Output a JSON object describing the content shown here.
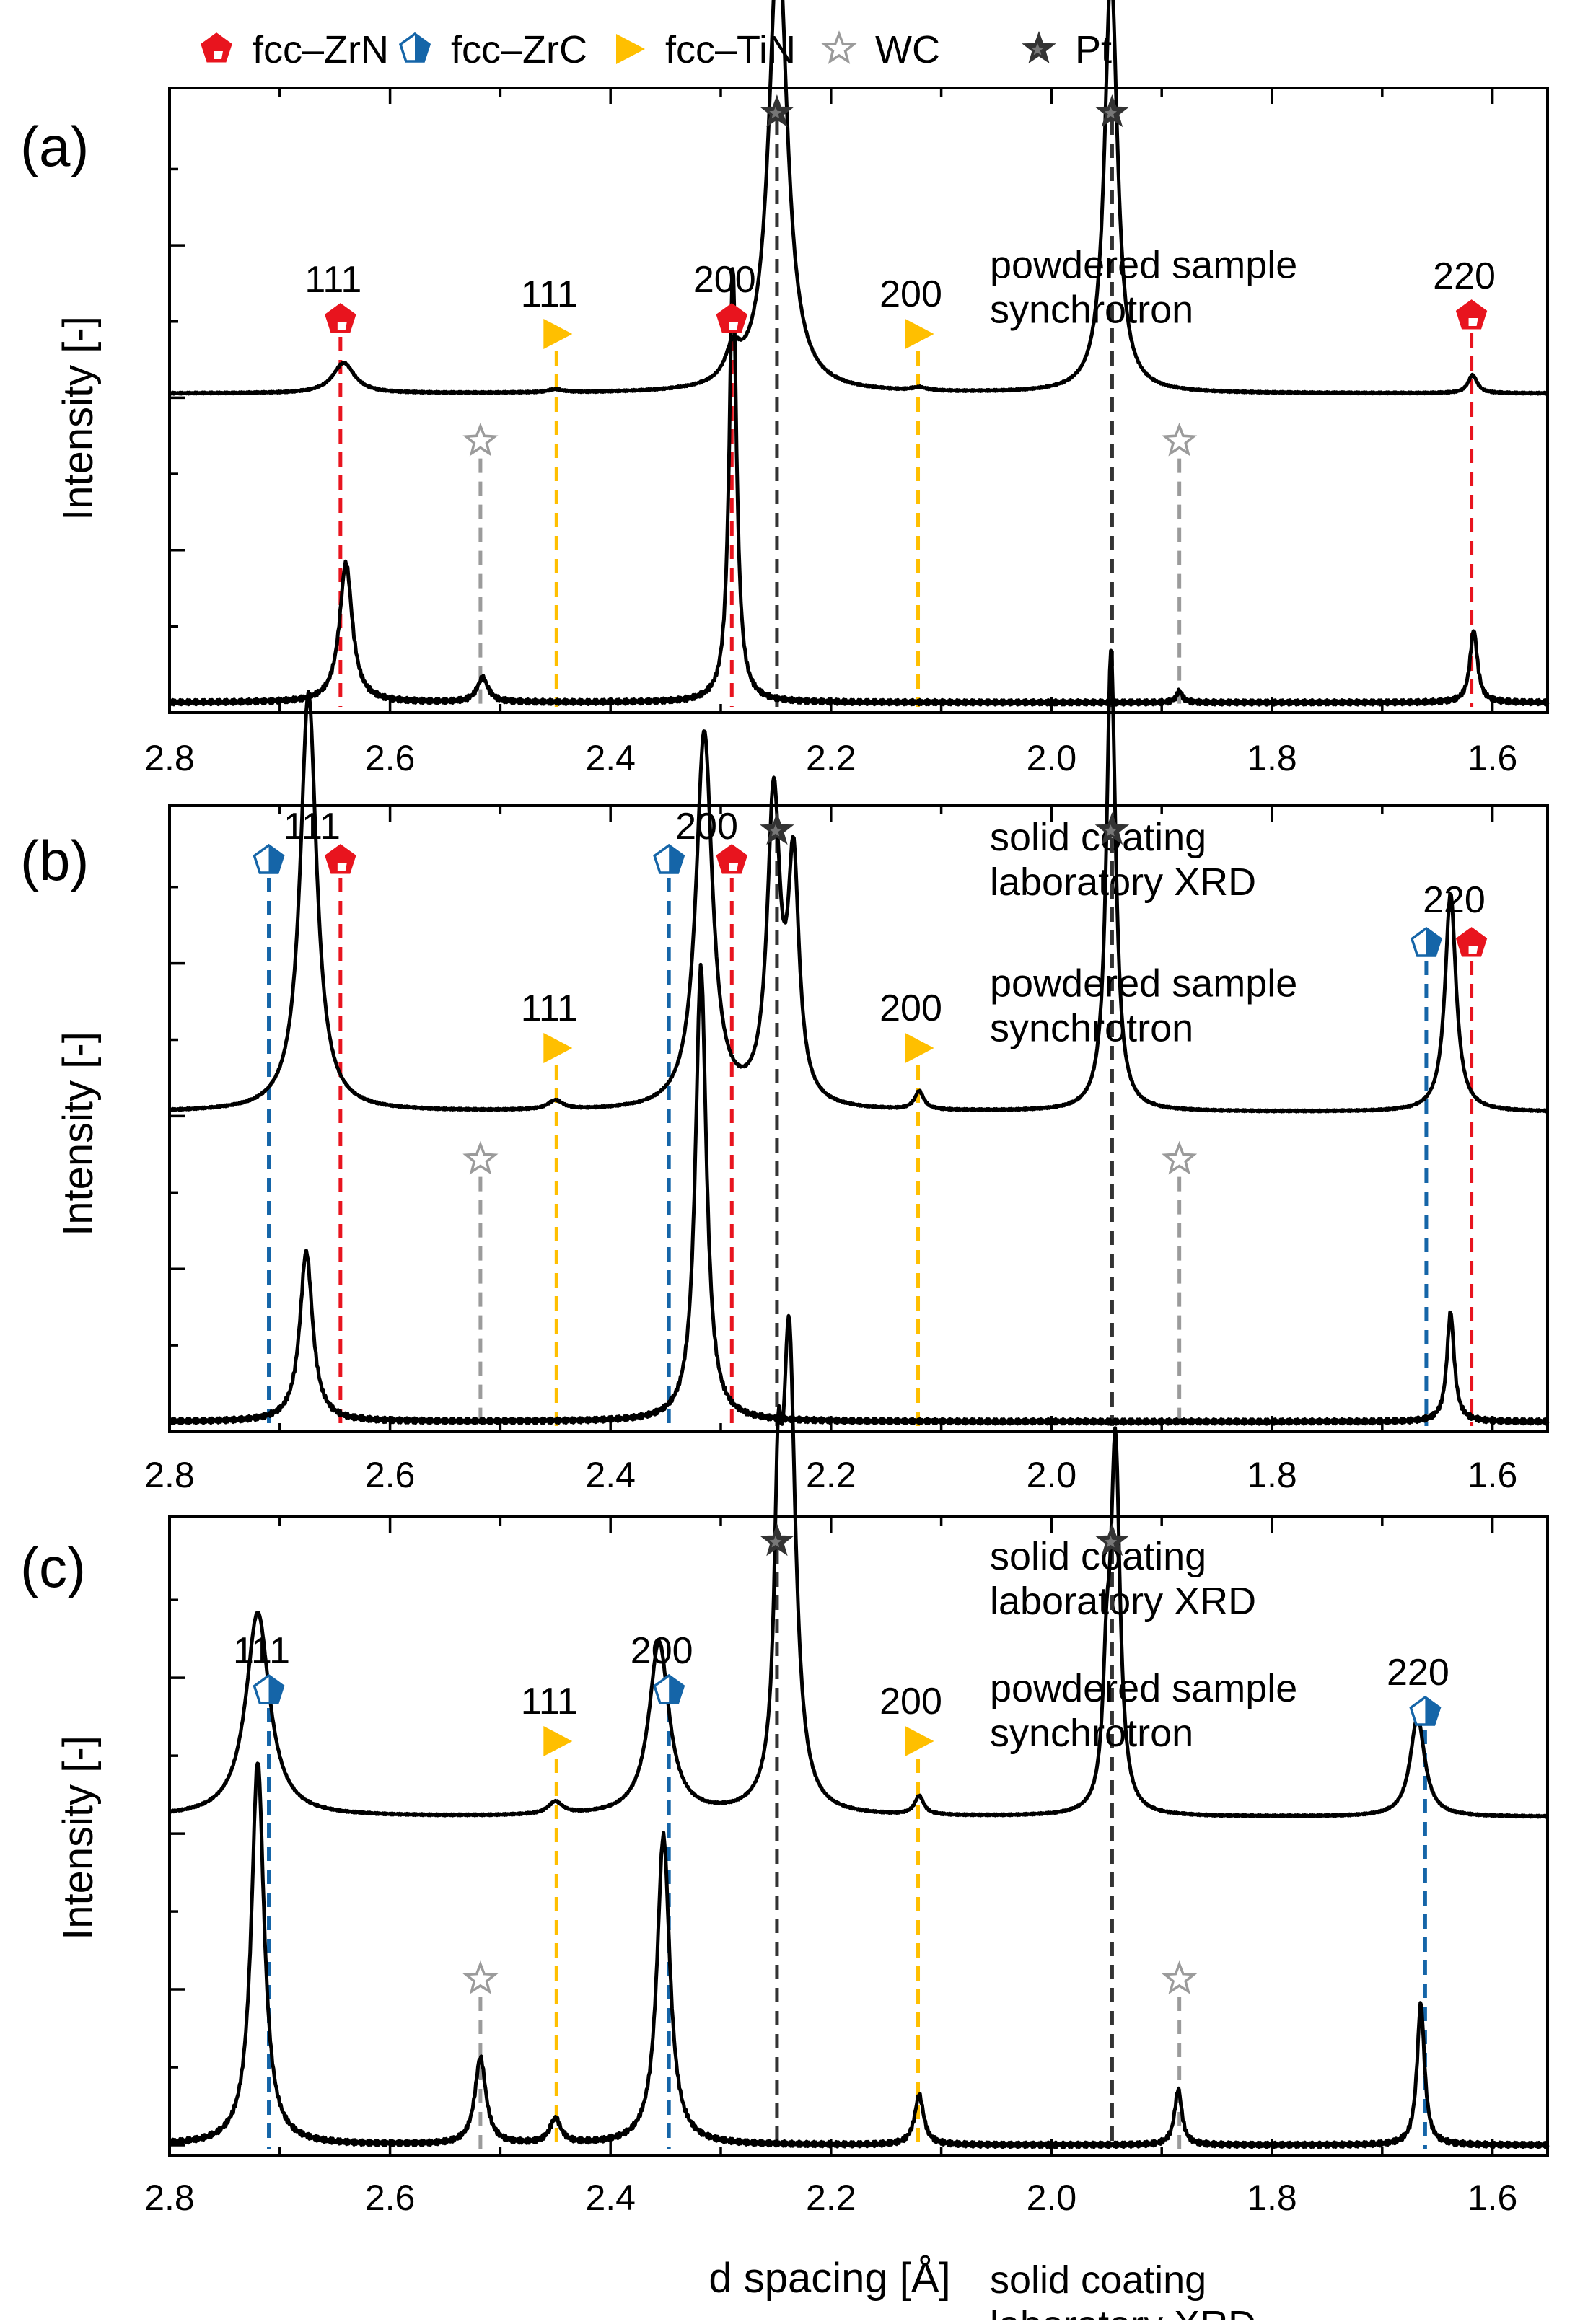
{
  "figure": {
    "xlabel": "d spacing [Å]",
    "ylabel": "Intensity [-]"
  },
  "legend": [
    {
      "label": "fcc–ZrN",
      "marker": "pentagon-filled",
      "color": "#e8141e"
    },
    {
      "label": "fcc–ZrC",
      "marker": "pentagon-half",
      "color": "#1565a8"
    },
    {
      "label": "fcc–TiN",
      "marker": "triangle-right",
      "color": "#ffbf00"
    },
    {
      "label": "WC",
      "marker": "star-open",
      "color": "#9b9b9b"
    },
    {
      "label": "Pt",
      "marker": "star-filled",
      "color": "#333333"
    }
  ],
  "colors": {
    "ZrN": "#e8141e",
    "ZrC": "#1565a8",
    "TiN": "#ffbf00",
    "WC": "#9b9b9b",
    "Pt": "#333333",
    "data": "#000000"
  },
  "chart_data": [
    {
      "type": "line",
      "panel_label": "(a)",
      "xlim": [
        2.8,
        1.55
      ],
      "xticks": [
        2.8,
        2.6,
        2.4,
        2.2,
        2.0,
        1.8,
        1.6
      ],
      "xticklabels": [
        "2.8",
        "2.6",
        "2.4",
        "2.2",
        "2.0",
        "1.8",
        "1.6"
      ],
      "series": [
        {
          "name": "powdered sample synchrotron",
          "label_lines": [
            "powdered sample",
            "synchrotron"
          ],
          "baseline": 0.51,
          "peaks": [
            {
              "d": 2.642,
              "h": 0.05,
              "w": 0.012
            },
            {
              "d": 2.45,
              "h": 0.005,
              "w": 0.008
            },
            {
              "d": 2.289,
              "h": 0.05,
              "w": 0.008
            },
            {
              "d": 2.248,
              "h": 0.76,
              "w": 0.01
            },
            {
              "d": 2.12,
              "h": 0.005,
              "w": 0.008
            },
            {
              "d": 1.946,
              "h": 0.7,
              "w": 0.007
            },
            {
              "d": 1.618,
              "h": 0.03,
              "w": 0.005
            }
          ]
        },
        {
          "name": "solid coating laboratory XRD",
          "label_lines": [
            "solid coating",
            "laboratory XRD"
          ],
          "baseline": 0.0,
          "peaks": [
            {
              "d": 2.64,
              "h": 0.23,
              "w": 0.007
            },
            {
              "d": 2.516,
              "h": 0.04,
              "w": 0.006
            },
            {
              "d": 2.289,
              "h": 0.72,
              "w": 0.004
            },
            {
              "d": 1.884,
              "h": 0.02,
              "w": 0.003
            },
            {
              "d": 1.617,
              "h": 0.12,
              "w": 0.004
            }
          ]
        }
      ],
      "reference_lines": [
        {
          "phase": "ZrN",
          "d": 2.645,
          "hkl": "111"
        },
        {
          "phase": "ZrN",
          "d": 2.29,
          "hkl": "200"
        },
        {
          "phase": "ZrN",
          "d": 1.619,
          "hkl": "220"
        },
        {
          "phase": "TiN",
          "d": 2.449,
          "hkl": "111"
        },
        {
          "phase": "TiN",
          "d": 2.121,
          "hkl": "200"
        },
        {
          "phase": "WC",
          "d": 2.518,
          "hkl": ""
        },
        {
          "phase": "WC",
          "d": 1.884,
          "hkl": ""
        },
        {
          "phase": "Pt",
          "d": 2.249,
          "hkl": ""
        },
        {
          "phase": "Pt",
          "d": 1.945,
          "hkl": ""
        }
      ]
    },
    {
      "type": "line",
      "panel_label": "(b)",
      "xlim": [
        2.8,
        1.55
      ],
      "xticks": [
        2.8,
        2.6,
        2.4,
        2.2,
        2.0,
        1.8,
        1.6
      ],
      "xticklabels": [
        "2.8",
        "2.6",
        "2.4",
        "2.2",
        "2.0",
        "1.8",
        "1.6"
      ],
      "series": [
        {
          "name": "powdered sample synchrotron",
          "label_lines": [
            "powdered sample",
            "synchrotron"
          ],
          "baseline": 0.51,
          "peaks": [
            {
              "d": 2.674,
              "h": 0.69,
              "w": 0.009
            },
            {
              "d": 2.45,
              "h": 0.015,
              "w": 0.008
            },
            {
              "d": 2.315,
              "h": 0.62,
              "w": 0.009
            },
            {
              "d": 2.252,
              "h": 0.5,
              "w": 0.007
            },
            {
              "d": 2.234,
              "h": 0.38,
              "w": 0.006
            },
            {
              "d": 2.12,
              "h": 0.03,
              "w": 0.005
            },
            {
              "d": 1.946,
              "h": 0.76,
              "w": 0.005
            },
            {
              "d": 1.638,
              "h": 0.36,
              "w": 0.006
            }
          ]
        },
        {
          "name": "solid coating laboratory XRD",
          "label_lines": [
            "solid coating",
            "laboratory XRD"
          ],
          "baseline": 0.0,
          "peaks": [
            {
              "d": 2.676,
              "h": 0.28,
              "w": 0.007
            },
            {
              "d": 2.318,
              "h": 0.75,
              "w": 0.006
            },
            {
              "d": 1.638,
              "h": 0.18,
              "w": 0.004
            }
          ]
        }
      ],
      "reference_lines": [
        {
          "phase": "ZrC",
          "d": 2.71,
          "hkl": ""
        },
        {
          "phase": "ZrN",
          "d": 2.645,
          "hkl": ""
        },
        {
          "phase": "ZrC",
          "d": 2.347,
          "hkl": ""
        },
        {
          "phase": "ZrN",
          "d": 2.29,
          "hkl": ""
        },
        {
          "phase": "ZrC",
          "d": 1.66,
          "hkl": ""
        },
        {
          "phase": "ZrN",
          "d": 1.619,
          "hkl": ""
        },
        {
          "phase": "TiN",
          "d": 2.449,
          "hkl": "111"
        },
        {
          "phase": "TiN",
          "d": 2.121,
          "hkl": "200"
        },
        {
          "phase": "WC",
          "d": 2.518,
          "hkl": ""
        },
        {
          "phase": "WC",
          "d": 1.884,
          "hkl": ""
        },
        {
          "phase": "Pt",
          "d": 2.249,
          "hkl": ""
        },
        {
          "phase": "Pt",
          "d": 1.945,
          "hkl": ""
        }
      ],
      "group_labels": [
        {
          "text": "111",
          "d": 2.676
        },
        {
          "text": "200",
          "d": 2.318
        },
        {
          "text": "220",
          "d": 1.64
        }
      ]
    },
    {
      "type": "line",
      "panel_label": "(c)",
      "xlim": [
        2.8,
        1.55
      ],
      "xticks": [
        2.8,
        2.6,
        2.4,
        2.2,
        2.0,
        1.8,
        1.6
      ],
      "xticklabels": [
        "2.8",
        "2.6",
        "2.4",
        "2.2",
        "2.0",
        "1.8",
        "1.6"
      ],
      "series": [
        {
          "name": "powdered sample synchrotron",
          "label_lines": [
            "powdered sample",
            "synchrotron"
          ],
          "baseline": 0.53,
          "peaks": [
            {
              "d": 2.72,
              "h": 0.33,
              "w": 0.013
            },
            {
              "d": 2.45,
              "h": 0.02,
              "w": 0.008
            },
            {
              "d": 2.356,
              "h": 0.28,
              "w": 0.011
            },
            {
              "d": 2.248,
              "h": 0.4,
              "w": 0.004
            },
            {
              "d": 2.238,
              "h": 0.75,
              "w": 0.007
            },
            {
              "d": 2.12,
              "h": 0.03,
              "w": 0.005
            },
            {
              "d": 1.95,
              "h": 0.18,
              "w": 0.004
            },
            {
              "d": 1.942,
              "h": 0.59,
              "w": 0.005
            },
            {
              "d": 1.668,
              "h": 0.16,
              "w": 0.008
            }
          ]
        },
        {
          "name": "solid coating laboratory XRD",
          "label_lines": [
            "solid coating",
            "laboratory XRD"
          ],
          "baseline": 0.0,
          "peaks": [
            {
              "d": 2.72,
              "h": 0.62,
              "w": 0.007
            },
            {
              "d": 2.518,
              "h": 0.14,
              "w": 0.006
            },
            {
              "d": 2.45,
              "h": 0.04,
              "w": 0.006
            },
            {
              "d": 2.352,
              "h": 0.5,
              "w": 0.007
            },
            {
              "d": 2.12,
              "h": 0.08,
              "w": 0.005
            },
            {
              "d": 1.885,
              "h": 0.09,
              "w": 0.004
            },
            {
              "d": 1.665,
              "h": 0.23,
              "w": 0.004
            }
          ]
        }
      ],
      "reference_lines": [
        {
          "phase": "ZrC",
          "d": 2.71,
          "hkl": "111"
        },
        {
          "phase": "ZrC",
          "d": 2.347,
          "hkl": "200"
        },
        {
          "phase": "ZrC",
          "d": 1.661,
          "hkl": "220"
        },
        {
          "phase": "TiN",
          "d": 2.449,
          "hkl": "111"
        },
        {
          "phase": "TiN",
          "d": 2.121,
          "hkl": "200"
        },
        {
          "phase": "WC",
          "d": 2.518,
          "hkl": ""
        },
        {
          "phase": "WC",
          "d": 1.884,
          "hkl": ""
        },
        {
          "phase": "Pt",
          "d": 2.249,
          "hkl": ""
        },
        {
          "phase": "Pt",
          "d": 1.945,
          "hkl": ""
        }
      ]
    }
  ]
}
